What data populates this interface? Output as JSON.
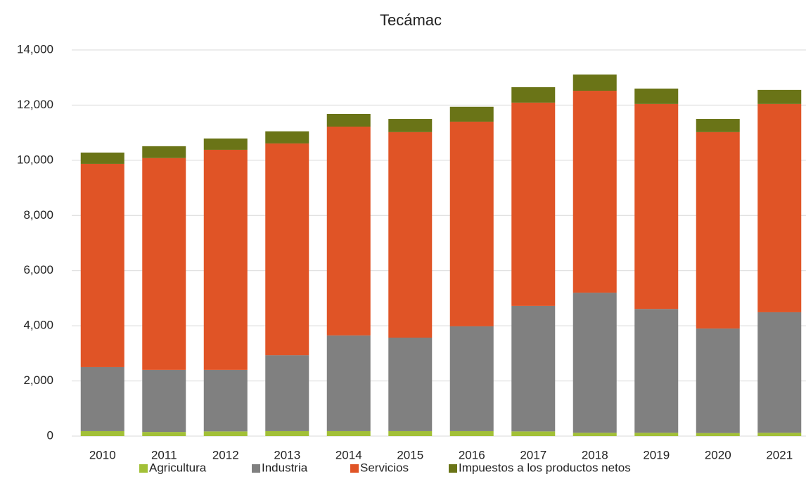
{
  "chart_data": {
    "type": "stacked_bar",
    "title": "Tecámac",
    "categories": [
      "2010",
      "2011",
      "2012",
      "2013",
      "2014",
      "2015",
      "2016",
      "2017",
      "2018",
      "2019",
      "2020",
      "2021"
    ],
    "series": [
      {
        "name": "Agricultura",
        "color": "#a2c037",
        "values": [
          180,
          150,
          170,
          180,
          180,
          180,
          180,
          170,
          120,
          120,
          110,
          120
        ]
      },
      {
        "name": "Industria",
        "color": "#808080",
        "values": [
          2320,
          2250,
          2230,
          2750,
          3470,
          3390,
          3800,
          4550,
          5080,
          4490,
          3790,
          4370
        ]
      },
      {
        "name": "Servicios",
        "color": "#e05426",
        "values": [
          7370,
          7680,
          7980,
          7680,
          7570,
          7450,
          7420,
          7370,
          7320,
          7430,
          7120,
          7550
        ]
      },
      {
        "name": "Impuestos a los productos netos",
        "color": "#6a7417",
        "values": [
          410,
          430,
          410,
          440,
          460,
          480,
          540,
          560,
          590,
          560,
          480,
          510
        ]
      }
    ],
    "ylim": [
      0,
      14000
    ],
    "yticks": [
      0,
      {
        "value": 2000,
        "label": "2,000"
      },
      {
        "value": 4000,
        "label": "4,000"
      },
      {
        "value": 6000,
        "label": "6,000"
      },
      {
        "value": 8000,
        "label": "8,000"
      },
      {
        "value": 10000,
        "label": "10,000"
      },
      {
        "value": 12000,
        "label": "12,000"
      },
      {
        "value": 14000,
        "label": "14,000"
      }
    ],
    "grid": true,
    "legend": "bottom"
  }
}
